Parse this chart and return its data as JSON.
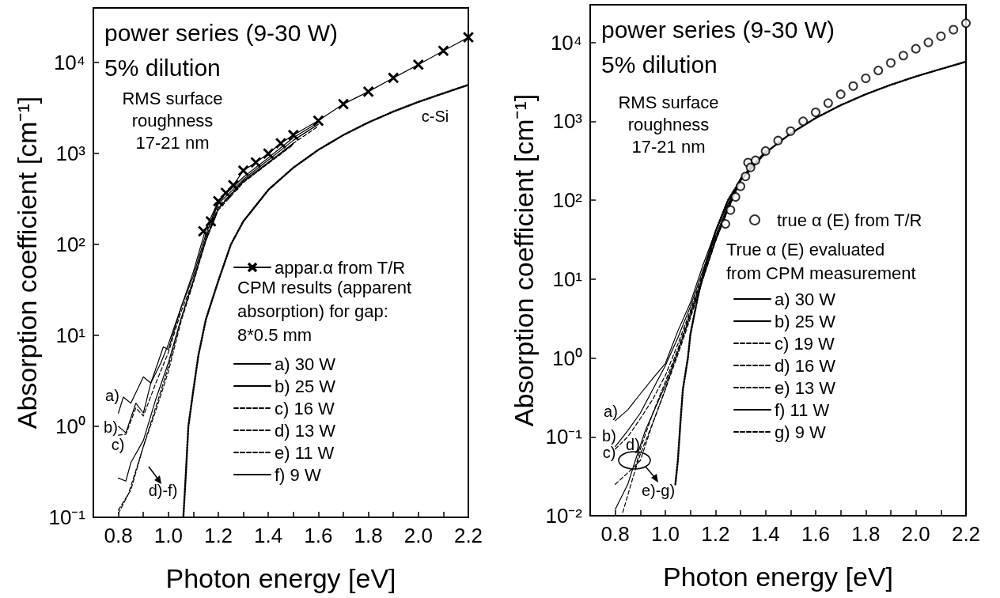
{
  "chart_data": [
    {
      "type": "line",
      "title": "power series (9-30 W)",
      "subtitle": "5% dilution",
      "xlabel": "Photon energy [eV]",
      "ylabel": "Absorption coefficient [cm⁻¹]",
      "legend_title": "CPM results (apparent\nabsorption) for gap:\n8*0.5 mm",
      "log": "y",
      "grid": false,
      "legend": "bottom right",
      "xlim": [
        0.7,
        2.2
      ],
      "xticks": [
        0.8,
        {
          "value": 0.9,
          "label": null
        },
        {
          "value": 1.0,
          "label": "1.0"
        },
        {
          "value": 1.1,
          "label": null
        },
        1.2,
        {
          "value": 1.3,
          "label": null
        },
        1.4,
        {
          "value": 1.5,
          "label": null
        },
        1.6,
        {
          "value": 1.7,
          "label": null
        },
        1.8,
        {
          "value": 1.9,
          "label": null
        },
        {
          "value": 2.0,
          "label": "2.0"
        },
        {
          "value": 2.1,
          "label": null
        },
        2.2
      ],
      "ylim": [
        0.1,
        40000
      ],
      "yticks": [
        {
          "value": 0.1,
          "label": "10⁻¹"
        },
        {
          "value": 1,
          "label": "10⁰"
        },
        {
          "value": 10,
          "label": "10¹"
        },
        {
          "value": 100,
          "label": "10²"
        },
        {
          "value": 1000,
          "label": "10³"
        },
        {
          "value": 10000,
          "label": "10⁴"
        }
      ],
      "annotations": [
        "RMS surface\nroughness\n17-21 nm",
        "c-Si",
        "a)",
        "b)",
        "c)",
        "d)-f)"
      ],
      "series": [
        {
          "name": "appar.α from T/R",
          "color": "#000000",
          "marker": "cross",
          "line_style": "solid",
          "x": [
            1.14,
            1.17,
            1.2,
            1.23,
            1.26,
            1.3,
            1.35,
            1.4,
            1.45,
            1.5,
            1.6,
            1.7,
            1.8,
            1.9,
            2.0,
            2.1,
            2.2
          ],
          "values": [
            140,
            180,
            300,
            370,
            450,
            650,
            800,
            1000,
            1300,
            1600,
            2300,
            3500,
            4800,
            6800,
            9500,
            13500,
            19000
          ]
        },
        {
          "name": "a) 30 W",
          "color": "#000000",
          "marker": "none",
          "line_style": "solid",
          "x": [
            0.8,
            0.82,
            0.85,
            0.9,
            0.93,
            0.98,
            1.0,
            1.05,
            1.1,
            1.15,
            1.2,
            1.3,
            1.4,
            1.5,
            1.6
          ],
          "values": [
            1.4,
            2.1,
            1.8,
            3.5,
            3,
            7.5,
            7,
            20,
            50,
            150,
            300,
            550,
            900,
            1500,
            2200
          ]
        },
        {
          "name": "b) 25 W",
          "color": "#000000",
          "marker": "none",
          "line_style": "solid",
          "x": [
            0.8,
            0.83,
            0.87,
            0.9,
            0.93,
            0.97,
            1.0,
            1.05,
            1.1,
            1.15,
            1.2,
            1.3,
            1.4,
            1.5,
            1.6
          ],
          "values": [
            1.0,
            0.85,
            1.8,
            1.4,
            3,
            5,
            8,
            20,
            45,
            130,
            280,
            520,
            850,
            1400,
            2100
          ]
        },
        {
          "name": "c) 16 W",
          "color": "#000000",
          "marker": "none",
          "line_style": "dashed",
          "x": [
            0.8,
            0.83,
            0.87,
            0.9,
            0.95,
            1.0,
            1.05,
            1.1,
            1.15,
            1.2,
            1.3,
            1.4,
            1.5,
            1.6
          ],
          "values": [
            0.8,
            0.82,
            1.6,
            1.3,
            3,
            6.5,
            18,
            40,
            120,
            260,
            500,
            800,
            1300,
            2000
          ]
        },
        {
          "name": "d) 13 W",
          "color": "#000000",
          "marker": "none",
          "line_style": "dashed",
          "x": [
            0.8,
            0.85,
            0.9,
            0.95,
            1.0,
            1.05,
            1.1,
            1.15,
            1.2,
            1.3,
            1.4,
            1.5
          ],
          "values": [
            0.12,
            0.2,
            0.6,
            1.5,
            4,
            14,
            38,
            110,
            240,
            480,
            780,
            1250
          ]
        },
        {
          "name": "e) 11 W",
          "color": "#000000",
          "marker": "none",
          "line_style": "dashed",
          "x": [
            0.8,
            0.84,
            0.88,
            0.92,
            0.96,
            1.0,
            1.05,
            1.1,
            1.15,
            1.2,
            1.3,
            1.4,
            1.5
          ],
          "values": [
            0.11,
            0.18,
            0.4,
            0.9,
            2,
            4.5,
            15,
            40,
            115,
            250,
            490,
            790,
            1280
          ]
        },
        {
          "name": "f) 9 W",
          "color": "#000000",
          "marker": "none",
          "line_style": "solid",
          "x": [
            0.8,
            0.83,
            0.85,
            0.9,
            0.95,
            1.0,
            1.05,
            1.1,
            1.15,
            1.2,
            1.3,
            1.4,
            1.5
          ],
          "values": [
            0.27,
            0.25,
            0.4,
            0.7,
            2,
            5,
            15,
            40,
            110,
            250,
            500,
            800,
            1300
          ]
        },
        {
          "color": "#000000",
          "marker": "none",
          "line_style": "dotted",
          "x": [
            1.06,
            1.07,
            1.08,
            1.1,
            1.12,
            1.15,
            1.2,
            1.25,
            1.3,
            1.4,
            1.5,
            1.6,
            1.7,
            1.8,
            1.9,
            2.0,
            2.1,
            2.2
          ],
          "values": [
            0.1,
            0.3,
            1,
            2.5,
            6,
            15,
            40,
            100,
            180,
            400,
            700,
            1100,
            1600,
            2200,
            2900,
            3700,
            4600,
            5700
          ]
        }
      ]
    },
    {
      "type": "line",
      "title": "power series (9-30 W)",
      "subtitle": "5% dilution",
      "xlabel": "Photon energy [eV]",
      "ylabel": "Absorption coefficient [cm⁻¹]",
      "legend_title": "True α (E) evaluated\nfrom CPM measurement",
      "log": "y",
      "grid": false,
      "legend": "bottom right",
      "xlim": [
        0.7,
        2.2
      ],
      "xticks": [
        0.8,
        {
          "value": 0.9,
          "label": null
        },
        {
          "value": 1.0,
          "label": "1.0"
        },
        {
          "value": 1.1,
          "label": null
        },
        1.2,
        {
          "value": 1.3,
          "label": null
        },
        1.4,
        {
          "value": 1.5,
          "label": null
        },
        1.6,
        {
          "value": 1.7,
          "label": null
        },
        1.8,
        {
          "value": 1.9,
          "label": null
        },
        {
          "value": 2.0,
          "label": "2.0"
        },
        {
          "value": 2.1,
          "label": null
        },
        2.2
      ],
      "ylim": [
        0.01,
        30000
      ],
      "yticks": [
        {
          "value": 0.01,
          "label": "10⁻²"
        },
        {
          "value": 0.1,
          "label": "10⁻¹"
        },
        {
          "value": 1,
          "label": "10⁰"
        },
        {
          "value": 10,
          "label": "10¹"
        },
        {
          "value": 100,
          "label": "10²"
        },
        {
          "value": 1000,
          "label": "10³"
        },
        {
          "value": 10000,
          "label": "10⁴"
        }
      ],
      "annotations": [
        "RMS surface\nroughness\n17-21 nm",
        "a)",
        "b)",
        "c)",
        "d)",
        "e)-g)"
      ],
      "series": [
        {
          "name": "true α (E) from T/R",
          "type": "scatter",
          "color": "#000000",
          "marker": "circle",
          "x": [
            1.24,
            1.26,
            1.28,
            1.3,
            1.32,
            1.33,
            1.34,
            1.36,
            1.4,
            1.45,
            1.5,
            1.55,
            1.6,
            1.65,
            1.7,
            1.75,
            1.8,
            1.85,
            1.9,
            1.95,
            2.0,
            2.05,
            2.1,
            2.15,
            2.2
          ],
          "values": [
            50,
            75,
            110,
            150,
            200,
            300,
            260,
            320,
            420,
            570,
            750,
            1000,
            1300,
            1700,
            2200,
            2800,
            3500,
            4400,
            5500,
            6800,
            8300,
            10000,
            12000,
            14500,
            17500
          ]
        },
        {
          "name": "a) 30 W",
          "color": "#000000",
          "marker": "none",
          "line_style": "solid",
          "x": [
            0.8,
            0.85,
            0.9,
            0.95,
            1.0,
            1.05,
            1.1,
            1.15,
            1.2,
            1.25,
            1.3,
            1.4
          ],
          "values": [
            0.16,
            0.22,
            0.35,
            0.55,
            0.85,
            2.2,
            5,
            15,
            40,
            90,
            190,
            420
          ]
        },
        {
          "name": "b) 25 W",
          "color": "#000000",
          "marker": "none",
          "line_style": "solid",
          "x": [
            0.8,
            0.85,
            0.9,
            0.95,
            1.0,
            1.05,
            1.1,
            1.15,
            1.2,
            1.25,
            1.3,
            1.4
          ],
          "values": [
            0.075,
            0.12,
            0.2,
            0.4,
            0.8,
            1.8,
            4.5,
            13,
            35,
            85,
            185,
            410
          ]
        },
        {
          "name": "c) 19 W",
          "color": "#000000",
          "marker": "none",
          "line_style": "dashed",
          "x": [
            0.8,
            0.85,
            0.9,
            0.95,
            1.0,
            1.05,
            1.1,
            1.15,
            1.2,
            1.25,
            1.3,
            1.4
          ],
          "values": [
            0.07,
            0.1,
            0.17,
            0.3,
            0.6,
            1.5,
            4,
            12,
            33,
            80,
            180,
            400
          ]
        },
        {
          "name": "d) 16 W",
          "color": "#000000",
          "marker": "none",
          "line_style": "dashed",
          "x": [
            0.88,
            0.9,
            0.95,
            1.0,
            1.05,
            1.1,
            1.15,
            1.2,
            1.25,
            1.3,
            1.4
          ],
          "values": [
            0.04,
            0.07,
            0.2,
            0.5,
            1.3,
            3.8,
            11,
            32,
            80,
            180,
            400
          ]
        },
        {
          "name": "e) 13 W",
          "color": "#000000",
          "marker": "none",
          "line_style": "dashed",
          "x": [
            0.8,
            0.85,
            0.9,
            0.95,
            1.0,
            1.05,
            1.1,
            1.15,
            1.2,
            1.25,
            1.3,
            1.4
          ],
          "values": [
            0.025,
            0.035,
            0.05,
            0.15,
            0.4,
            1.2,
            3.5,
            10,
            30,
            75,
            175,
            400
          ]
        },
        {
          "name": "f) 11 W",
          "color": "#000000",
          "marker": "none",
          "line_style": "solid",
          "x": [
            0.8,
            0.85,
            0.88,
            0.92,
            1.0,
            1.05,
            1.1,
            1.15,
            1.2,
            1.25,
            1.3,
            1.4
          ],
          "values": [
            0.012,
            0.025,
            0.05,
            0.12,
            0.45,
            1.2,
            3.5,
            10.5,
            31,
            78,
            178,
            400
          ]
        },
        {
          "name": "g) 9 W",
          "color": "#000000",
          "marker": "none",
          "line_style": "dashed",
          "x": [
            0.83,
            0.87,
            0.9,
            0.95,
            1.0,
            1.05,
            1.1,
            1.15,
            1.2,
            1.25,
            1.3,
            1.4
          ],
          "values": [
            0.011,
            0.03,
            0.06,
            0.15,
            0.4,
            1.1,
            3.2,
            10,
            30,
            75,
            175,
            400
          ]
        },
        {
          "color": "#000000",
          "marker": "none",
          "line_style": "dotted",
          "x": [
            1.04,
            1.05,
            1.06,
            1.07,
            1.09,
            1.1,
            1.13,
            1.16,
            1.2,
            1.25,
            1.3,
            1.4,
            1.5,
            1.6,
            1.7,
            1.8,
            1.9,
            2.0,
            2.1,
            2.2
          ],
          "values": [
            0.025,
            0.05,
            0.15,
            0.4,
            1,
            2,
            6,
            15,
            40,
            100,
            180,
            400,
            700,
            1100,
            1600,
            2200,
            2900,
            3700,
            4600,
            5700
          ]
        }
      ]
    }
  ]
}
